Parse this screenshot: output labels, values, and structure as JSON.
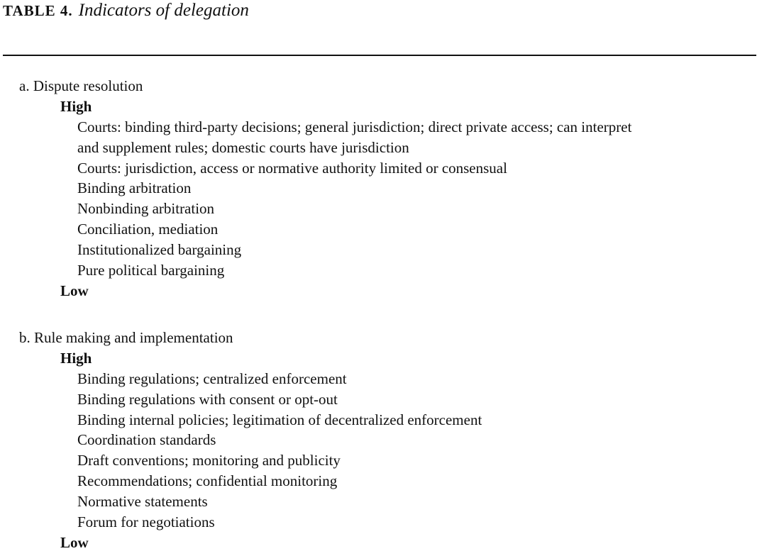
{
  "table": {
    "label": "TABLE 4.",
    "caption": "Indicators of delegation"
  },
  "sections": [
    {
      "heading": "a. Dispute resolution",
      "high_label": "High",
      "items": [
        "Courts: binding third-party decisions; general jurisdiction; direct private access; can interpret",
        "and supplement rules; domestic courts have jurisdiction",
        "Courts: jurisdiction, access or normative authority limited or consensual",
        "Binding arbitration",
        "Nonbinding arbitration",
        "Conciliation, mediation",
        "Institutionalized bargaining",
        "Pure political bargaining"
      ],
      "low_label": "Low"
    },
    {
      "heading": "b. Rule making and implementation",
      "high_label": "High",
      "items": [
        "Binding regulations; centralized enforcement",
        "Binding regulations with consent or opt-out",
        "Binding internal policies; legitimation of decentralized enforcement",
        "Coordination standards",
        "Draft conventions; monitoring and publicity",
        "Recommendations; confidential monitoring",
        "Normative statements",
        "Forum for negotiations"
      ],
      "low_label": "Low"
    }
  ]
}
